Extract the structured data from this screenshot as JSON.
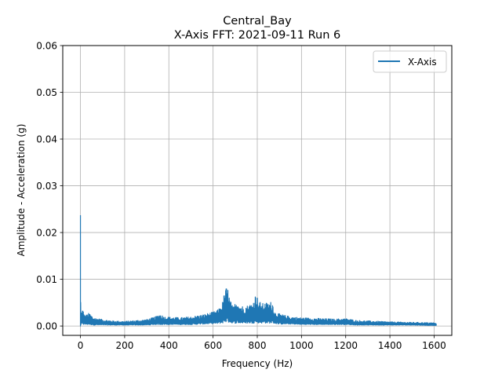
{
  "chart_data": {
    "type": "line",
    "title": "Central_Bay",
    "subtitle": "X-Axis FFT: 2021-09-11 Run 6",
    "xlabel": "Frequency (Hz)",
    "ylabel": "Amplitude - Acceleration (g)",
    "xlim": [
      -80,
      1680
    ],
    "ylim": [
      -0.002,
      0.06
    ],
    "xticks": [
      0,
      200,
      400,
      600,
      800,
      1000,
      1200,
      1400,
      1600
    ],
    "yticks": [
      0.0,
      0.01,
      0.02,
      0.03,
      0.04,
      0.05,
      0.06
    ],
    "xtick_labels": [
      "0",
      "200",
      "400",
      "600",
      "800",
      "1000",
      "1200",
      "1400",
      "1600"
    ],
    "ytick_labels": [
      "0.00",
      "0.01",
      "0.02",
      "0.03",
      "0.04",
      "0.05",
      "0.06"
    ],
    "grid": true,
    "legend": {
      "position": "top-right"
    },
    "series": [
      {
        "name": "X-Axis",
        "color": "#1f77b4",
        "envelope": {
          "x": [
            0,
            1,
            3,
            10,
            20,
            30,
            40,
            60,
            100,
            150,
            200,
            250,
            300,
            340,
            360,
            380,
            450,
            500,
            550,
            600,
            620,
            640,
            655,
            665,
            675,
            690,
            710,
            720,
            740,
            760,
            780,
            795,
            805,
            820,
            840,
            850,
            860,
            870,
            880,
            900,
            950,
            1000,
            1050,
            1100,
            1150,
            1200,
            1250,
            1300,
            1400,
            1500,
            1600,
            1610
          ],
          "upper": [
            0.0237,
            0.006,
            0.003,
            0.0037,
            0.0022,
            0.0025,
            0.0028,
            0.0018,
            0.0014,
            0.0011,
            0.001,
            0.0012,
            0.0014,
            0.002,
            0.0026,
            0.002,
            0.0018,
            0.002,
            0.0024,
            0.003,
            0.0034,
            0.0045,
            0.008,
            0.0085,
            0.006,
            0.004,
            0.0058,
            0.0045,
            0.0042,
            0.0045,
            0.005,
            0.0072,
            0.0055,
            0.0048,
            0.005,
            0.0049,
            0.0052,
            0.005,
            0.003,
            0.0026,
            0.002,
            0.0018,
            0.0017,
            0.0016,
            0.0015,
            0.0016,
            0.0012,
            0.0011,
            0.0009,
            0.0008,
            0.0007,
            0.0005
          ],
          "lower": [
            0.0,
            0.0,
            0.0003,
            0.0003,
            0.0003,
            0.0003,
            0.0003,
            0.0002,
            0.0002,
            0.0002,
            0.0002,
            0.0002,
            0.0002,
            0.0003,
            0.0003,
            0.0003,
            0.0003,
            0.0003,
            0.0004,
            0.0005,
            0.0005,
            0.0006,
            0.0008,
            0.0008,
            0.0007,
            0.0006,
            0.0006,
            0.0006,
            0.0006,
            0.0006,
            0.0006,
            0.0007,
            0.0006,
            0.0006,
            0.0006,
            0.0006,
            0.0006,
            0.0006,
            0.0005,
            0.0004,
            0.0004,
            0.0003,
            0.0003,
            0.0003,
            0.0003,
            0.0003,
            0.0002,
            0.0002,
            0.0002,
            0.0002,
            0.0001,
            0.0001
          ]
        }
      }
    ]
  }
}
